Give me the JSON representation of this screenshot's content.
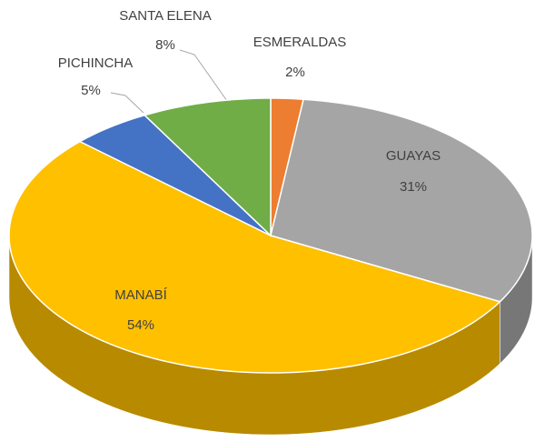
{
  "chart_data": {
    "type": "pie3d",
    "categories": [
      "ESMERALDAS",
      "GUAYAS",
      "MANABÍ",
      "PICHINCHA",
      "SANTA ELENA"
    ],
    "values": [
      2,
      31,
      54,
      5,
      8
    ],
    "value_labels": [
      "2%",
      "31%",
      "54%",
      "5%",
      "8%"
    ],
    "colors": [
      "#ed7d31",
      "#a5a5a5",
      "#ffc000",
      "#4472c4",
      "#70ad47"
    ]
  }
}
